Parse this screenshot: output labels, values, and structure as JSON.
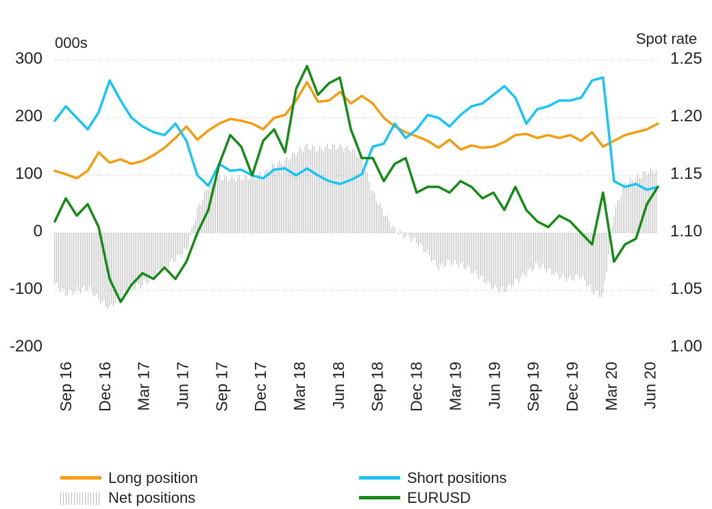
{
  "chart_data": {
    "type": "line",
    "left_axis_label": "000s",
    "right_axis_label": "Spot rate",
    "left_ticks": [
      "300",
      "200",
      "100",
      "0",
      "-100",
      "-200"
    ],
    "right_ticks": [
      "1.25",
      "1.20",
      "1.15",
      "1.10",
      "1.05",
      "1.00"
    ],
    "ylim_left": [
      -200,
      300
    ],
    "ylim_right": [
      1.0,
      1.25
    ],
    "grid": true,
    "legend_position": "bottom",
    "x_labels": [
      "Sep 16",
      "Dec 16",
      "Mar 17",
      "Jun 17",
      "Sep 17",
      "Dec 17",
      "Mar 18",
      "Jun 18",
      "Sep 18",
      "Dec 18",
      "Mar 19",
      "Jun 19",
      "Sep 19",
      "Dec 19",
      "Mar 20",
      "Jun 20"
    ],
    "x_start_index": 1,
    "series": [
      {
        "name": "Long position",
        "axis": "left",
        "color": "#f39c12",
        "style": "line",
        "values": [
          108,
          102,
          95,
          108,
          140,
          122,
          128,
          120,
          125,
          135,
          148,
          165,
          185,
          162,
          178,
          190,
          198,
          195,
          190,
          180,
          200,
          205,
          230,
          262,
          228,
          230,
          245,
          225,
          238,
          225,
          200,
          185,
          175,
          168,
          160,
          148,
          162,
          145,
          152,
          148,
          150,
          158,
          170,
          172,
          165,
          170,
          165,
          170,
          160,
          175,
          150,
          160,
          170,
          175,
          180,
          190
        ]
      },
      {
        "name": "Short positions",
        "axis": "left",
        "color": "#17c5f5",
        "style": "line",
        "values": [
          195,
          220,
          200,
          180,
          210,
          265,
          230,
          200,
          185,
          175,
          170,
          190,
          160,
          100,
          82,
          120,
          108,
          110,
          100,
          95,
          110,
          112,
          100,
          112,
          100,
          90,
          85,
          92,
          102,
          150,
          155,
          190,
          165,
          180,
          205,
          200,
          185,
          205,
          220,
          225,
          240,
          255,
          235,
          190,
          215,
          220,
          230,
          230,
          235,
          265,
          270,
          90,
          80,
          85,
          75,
          80
        ]
      },
      {
        "name": "Net positions",
        "axis": "left",
        "color": "#b5b5b5",
        "style": "bars",
        "values": [
          -90,
          -105,
          -100,
          -95,
          -115,
          -130,
          -110,
          -95,
          -90,
          -75,
          -60,
          -45,
          -30,
          40,
          80,
          95,
          95,
          95,
          98,
          100,
          118,
          125,
          140,
          150,
          145,
          150,
          150,
          145,
          130,
          70,
          35,
          5,
          -5,
          -15,
          -35,
          -60,
          -50,
          -55,
          -65,
          -80,
          -95,
          -100,
          -85,
          -70,
          -55,
          -65,
          -75,
          -80,
          -75,
          -100,
          -110,
          35,
          85,
          95,
          105,
          110
        ]
      },
      {
        "name": "EURUSD",
        "axis": "right",
        "color": "#168a16",
        "style": "line",
        "values": [
          1.11,
          1.13,
          1.115,
          1.125,
          1.105,
          1.06,
          1.04,
          1.055,
          1.065,
          1.06,
          1.07,
          1.06,
          1.075,
          1.1,
          1.12,
          1.16,
          1.185,
          1.175,
          1.15,
          1.18,
          1.19,
          1.17,
          1.225,
          1.245,
          1.22,
          1.23,
          1.235,
          1.19,
          1.165,
          1.165,
          1.145,
          1.16,
          1.165,
          1.135,
          1.14,
          1.14,
          1.135,
          1.145,
          1.14,
          1.13,
          1.135,
          1.12,
          1.14,
          1.12,
          1.11,
          1.105,
          1.115,
          1.11,
          1.1,
          1.09,
          1.135,
          1.075,
          1.09,
          1.095,
          1.125,
          1.14
        ]
      }
    ]
  },
  "legend": {
    "long_label": "Long position",
    "short_label": "Short positions",
    "net_label": "Net positions",
    "eurusd_label": "EURUSD"
  }
}
